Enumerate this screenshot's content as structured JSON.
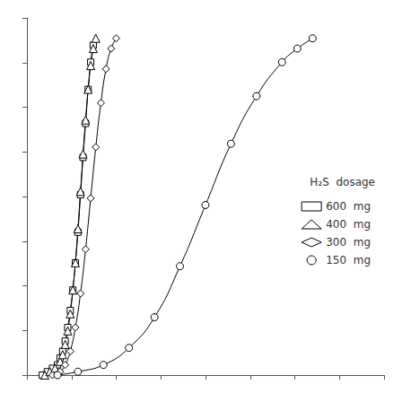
{
  "chart_data": {
    "type": "line",
    "legend_title": "H₂S  dosage",
    "legend": "right",
    "grid": false,
    "tick_labels": false,
    "color": "black",
    "xlim": [
      0,
      7.0
    ],
    "ylim": [
      0,
      1.05
    ],
    "xticks": [
      0,
      0.875,
      1.75,
      2.625,
      3.5,
      4.375,
      5.25,
      6.125,
      7.0
    ],
    "yticks": [
      0,
      0.13125,
      0.2625,
      0.39375,
      0.525,
      0.65625,
      0.7875,
      0.91875,
      1.05
    ],
    "series": [
      {
        "name": "600  mg",
        "marker": "square",
        "x": [
          0.3,
          0.4,
          0.5,
          0.6,
          0.65,
          0.7,
          0.75,
          0.8,
          0.85,
          0.9,
          0.95,
          1.0,
          1.05,
          1.1,
          1.15,
          1.2,
          1.25,
          1.3
        ],
        "values": [
          0.0,
          0.01,
          0.02,
          0.03,
          0.05,
          0.07,
          0.1,
          0.14,
          0.19,
          0.25,
          0.33,
          0.42,
          0.53,
          0.64,
          0.74,
          0.84,
          0.92,
          0.97
        ]
      },
      {
        "name": "400  mg",
        "marker": "triangle",
        "x": [
          0.35,
          0.45,
          0.55,
          0.65,
          0.7,
          0.75,
          0.8,
          0.85,
          0.9,
          0.95,
          1.0,
          1.05,
          1.1,
          1.15,
          1.2,
          1.25,
          1.3,
          1.35
        ],
        "values": [
          0.0,
          0.01,
          0.02,
          0.04,
          0.06,
          0.09,
          0.13,
          0.18,
          0.25,
          0.33,
          0.43,
          0.54,
          0.65,
          0.75,
          0.84,
          0.91,
          0.96,
          0.99
        ]
      },
      {
        "name": "300  mg",
        "marker": "diamond",
        "x": [
          0.5,
          0.65,
          0.75,
          0.85,
          0.95,
          1.05,
          1.15,
          1.25,
          1.35,
          1.45,
          1.55,
          1.65,
          1.75
        ],
        "values": [
          0.0,
          0.01,
          0.03,
          0.07,
          0.14,
          0.24,
          0.37,
          0.52,
          0.67,
          0.8,
          0.9,
          0.96,
          0.99
        ]
      },
      {
        "name": "150  mg",
        "marker": "circle",
        "x": [
          0.6,
          1.0,
          1.5,
          2.0,
          2.5,
          3.0,
          3.5,
          4.0,
          4.5,
          5.0,
          5.3,
          5.6
        ],
        "values": [
          0.0,
          0.01,
          0.03,
          0.08,
          0.17,
          0.32,
          0.5,
          0.68,
          0.82,
          0.92,
          0.96,
          0.99
        ]
      }
    ]
  }
}
